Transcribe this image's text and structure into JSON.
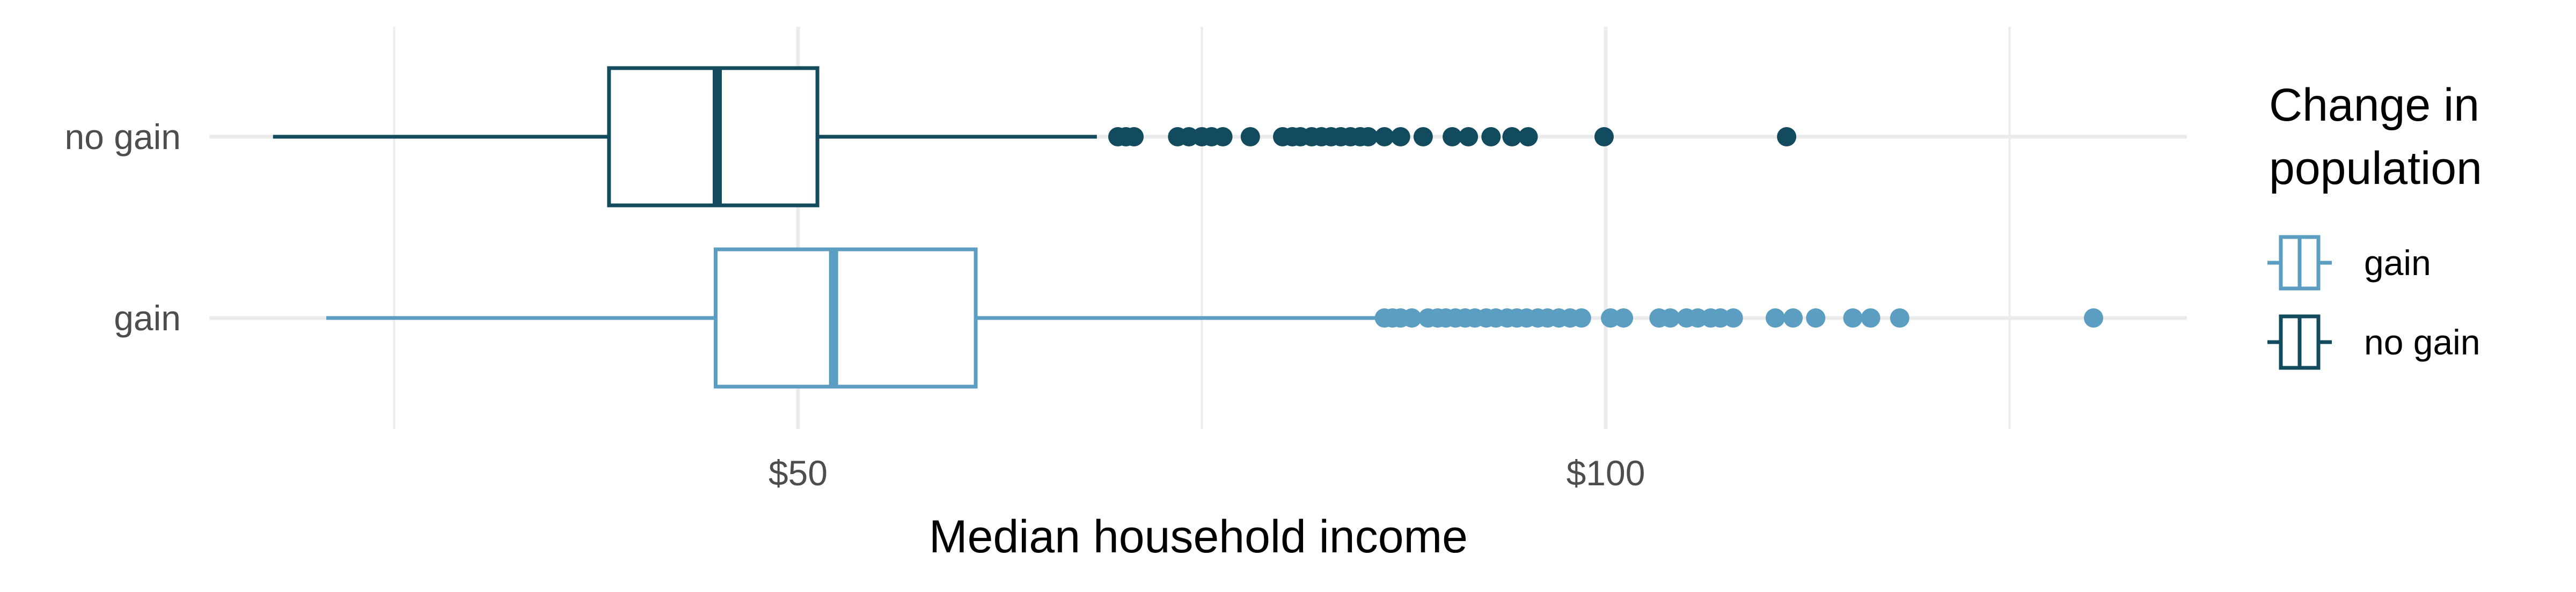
{
  "chart_data": {
    "type": "boxplot",
    "xlabel": "Median household income",
    "x_ticks": [
      {
        "value": 50,
        "label": "$50"
      },
      {
        "value": 100,
        "label": "$100"
      }
    ],
    "x_grid_minor": [
      25,
      75,
      125
    ],
    "xlim": [
      11,
      134
    ],
    "grid": true,
    "legend_position": "right",
    "legend_title": [
      "Change in",
      "population"
    ],
    "legend": [
      {
        "label": "gain",
        "color": "#5B9EC1"
      },
      {
        "label": "no gain",
        "color": "#124A5E"
      }
    ],
    "series": [
      {
        "category": "no gain",
        "color": "#124A5E",
        "whisker_low": 17.5,
        "q1": 38.3,
        "median": 45.0,
        "q3": 51.2,
        "whisker_high": 68.5,
        "outliers": [
          69.8,
          70.3,
          70.8,
          73.5,
          74.2,
          75.0,
          75.6,
          76.3,
          78.0,
          80.0,
          80.6,
          81.1,
          81.8,
          82.4,
          83.0,
          83.6,
          84.2,
          84.8,
          85.3,
          86.3,
          87.3,
          88.7,
          90.5,
          91.5,
          92.9,
          94.2,
          95.2,
          99.9,
          111.2
        ]
      },
      {
        "category": "gain",
        "color": "#5B9EC1",
        "whisker_low": 20.8,
        "q1": 44.9,
        "median": 52.2,
        "q3": 61.0,
        "whisker_high": 85.8,
        "outliers": [
          86.3,
          86.8,
          87.3,
          88.0,
          89.0,
          89.6,
          90.1,
          90.7,
          91.3,
          91.9,
          92.6,
          93.2,
          93.9,
          94.5,
          95.1,
          95.8,
          96.4,
          97.1,
          97.8,
          98.5,
          100.3,
          101.1,
          103.3,
          104.0,
          105.0,
          105.7,
          106.5,
          107.1,
          107.9,
          110.5,
          111.6,
          113.0,
          115.3,
          116.4,
          118.2,
          130.2
        ]
      }
    ]
  }
}
